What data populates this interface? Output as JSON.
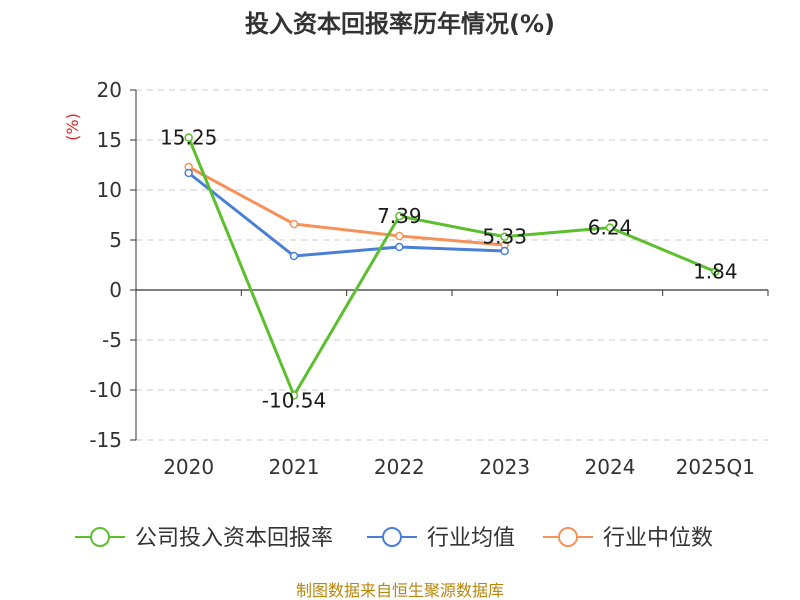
{
  "chart_data": {
    "type": "line",
    "title": "投入资本回报率历年情况(%)",
    "ylabel": "(%)",
    "xlabel": "",
    "categories": [
      "2020",
      "2021",
      "2022",
      "2023",
      "2024",
      "2025Q1"
    ],
    "ylim": [
      -15,
      20
    ],
    "yticks": [
      20,
      15,
      10,
      5,
      0,
      -5,
      -10,
      -15
    ],
    "ytick_labels": [
      "20",
      "15",
      "10",
      "5",
      "0",
      "-5",
      "-10",
      "-15"
    ],
    "grid": true,
    "legend_position": "bottom",
    "series": [
      {
        "name": "公司投入资本回报率",
        "color": "#5cbf2e",
        "values": [
          15.25,
          -10.54,
          7.39,
          5.33,
          6.24,
          1.84
        ],
        "labels": [
          "15.25",
          "-10.54",
          "7.39",
          "5.33",
          "6.24",
          "1.84"
        ]
      },
      {
        "name": "行业均值",
        "color": "#4a7fd8",
        "values": [
          11.7,
          3.4,
          4.3,
          3.9,
          null,
          null
        ]
      },
      {
        "name": "行业中位数",
        "color": "#f59159",
        "values": [
          12.3,
          6.6,
          5.4,
          4.5,
          null,
          null
        ]
      }
    ],
    "source": "制图数据来自恒生聚源数据库"
  }
}
